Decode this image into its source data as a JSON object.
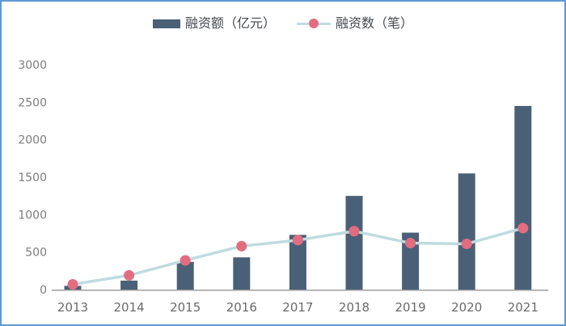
{
  "frame": {
    "border_color": "#5b9bd5",
    "background": "#ffffff"
  },
  "legend": {
    "position": "top-center",
    "text_color": "#45494f"
  },
  "chart_data": {
    "type": "bar+line combo",
    "title": "",
    "xlabel": "",
    "ylabel": "",
    "categories": [
      "2013",
      "2014",
      "2015",
      "2016",
      "2017",
      "2018",
      "2019",
      "2020",
      "2021"
    ],
    "series": [
      {
        "name": "融资额（亿元）",
        "type": "bar",
        "color": "#4a6076",
        "values": [
          50,
          120,
          370,
          430,
          730,
          1250,
          760,
          1550,
          2450
        ]
      },
      {
        "name": "融资数（笔）",
        "type": "line",
        "color": "#bedce0",
        "marker_color": "#e26d80",
        "values": [
          70,
          190,
          390,
          580,
          660,
          780,
          620,
          610,
          820
        ]
      }
    ],
    "ylim": [
      0,
      3000
    ],
    "yticks": [
      0,
      500,
      1000,
      1500,
      2000,
      2500,
      3000
    ],
    "grid": false,
    "legend_position": "top",
    "axis_style": {
      "y_tick_label_color": "#7d7d7d",
      "x_tick_label_color": "#6a6a6a",
      "axis_line_color": "#9e9e9e"
    }
  }
}
